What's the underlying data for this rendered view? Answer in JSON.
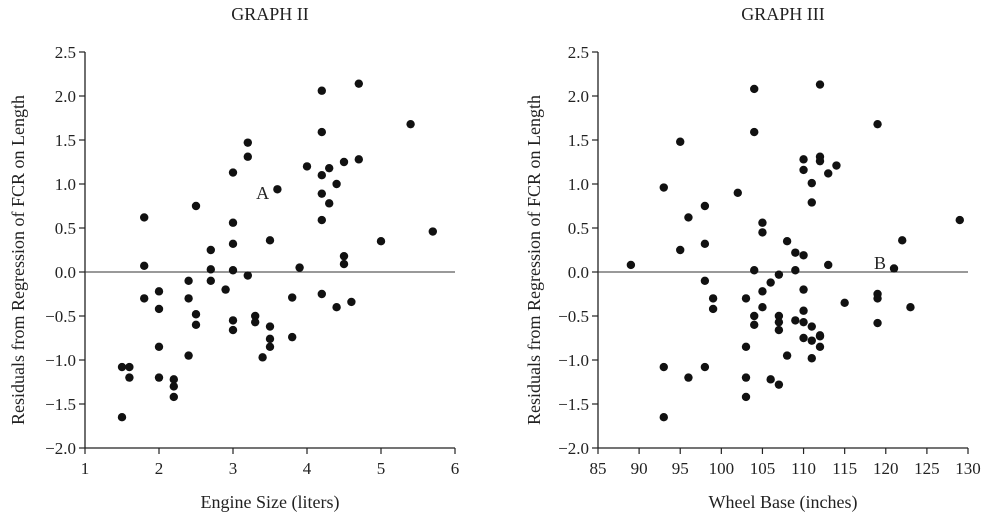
{
  "chart_data": [
    {
      "type": "scatter",
      "title": "GRAPH II",
      "xlabel": "Engine Size (liters)",
      "ylabel": "Residuals from Regression of FCR on Length",
      "xlim": [
        1,
        6
      ],
      "ylim": [
        -2.0,
        2.5
      ],
      "xticks": [
        "1",
        "2",
        "3",
        "4",
        "5",
        "6"
      ],
      "yticks": [
        "−2.0",
        "−1.5",
        "−1.0",
        "−0.5",
        "0.0",
        "0.5",
        "1.0",
        "1.5",
        "2.0",
        "2.5"
      ],
      "reference_line_y": 0,
      "annotations": [
        {
          "text": "A",
          "x": 3.4,
          "y": 0.9
        }
      ],
      "x": [
        1.5,
        1.5,
        1.6,
        1.6,
        1.8,
        1.8,
        1.8,
        2.0,
        2.0,
        2.0,
        2.0,
        2.2,
        2.2,
        2.2,
        2.4,
        2.4,
        2.4,
        2.5,
        2.5,
        2.5,
        2.7,
        2.7,
        2.7,
        2.9,
        3.0,
        3.0,
        3.0,
        3.0,
        3.0,
        3.0,
        3.2,
        3.2,
        3.2,
        3.3,
        3.3,
        3.4,
        3.5,
        3.5,
        3.5,
        3.5,
        3.6,
        3.8,
        3.8,
        3.9,
        4.0,
        4.2,
        4.2,
        4.2,
        4.2,
        4.2,
        4.2,
        4.3,
        4.3,
        4.4,
        4.4,
        4.5,
        4.5,
        4.5,
        4.6,
        4.7,
        4.7,
        5.0,
        5.4,
        5.7
      ],
      "y": [
        -1.08,
        -1.65,
        -1.08,
        -1.2,
        0.62,
        0.07,
        -0.3,
        -0.22,
        -0.42,
        -0.85,
        -1.2,
        -1.22,
        -1.3,
        -1.42,
        -0.1,
        -0.3,
        -0.95,
        0.75,
        -0.48,
        -0.6,
        0.25,
        0.03,
        -0.1,
        -0.2,
        1.13,
        0.56,
        0.32,
        0.02,
        -0.55,
        -0.66,
        1.47,
        1.31,
        -0.04,
        -0.5,
        -0.57,
        -0.97,
        0.36,
        -0.62,
        -0.76,
        -0.85,
        0.94,
        -0.29,
        -0.74,
        0.05,
        1.2,
        2.06,
        1.59,
        0.89,
        0.59,
        1.1,
        -0.25,
        0.78,
        1.18,
        1.0,
        -0.4,
        1.25,
        0.18,
        0.09,
        -0.34,
        2.14,
        1.28,
        0.35,
        1.68,
        0.46
      ]
    },
    {
      "type": "scatter",
      "title": "GRAPH III",
      "xlabel": "Wheel Base (inches)",
      "ylabel": "Residuals from Regression of FCR on Length",
      "xlim": [
        85,
        130
      ],
      "ylim": [
        -2.0,
        2.5
      ],
      "xticks": [
        "85",
        "90",
        "95",
        "100",
        "105",
        "110",
        "115",
        "120",
        "125",
        "130"
      ],
      "yticks": [
        "−2.0",
        "−1.5",
        "−1.0",
        "−0.5",
        "0.0",
        "0.5",
        "1.0",
        "1.5",
        "2.0",
        "2.5"
      ],
      "reference_line_y": 0,
      "annotations": [
        {
          "text": "B",
          "x": 119.3,
          "y": 0.1
        }
      ],
      "x": [
        89,
        93,
        93,
        93,
        95,
        95,
        96,
        96,
        98,
        98,
        98,
        98,
        99,
        99,
        102,
        103,
        103,
        103,
        103,
        104,
        104,
        104,
        104,
        104,
        105,
        105,
        105,
        105,
        106,
        106,
        107,
        107,
        107,
        107,
        107,
        108,
        108,
        109,
        109,
        109,
        110,
        110,
        110,
        110,
        110,
        110,
        110,
        111,
        111,
        111,
        111,
        111,
        112,
        112,
        112,
        112,
        112,
        112,
        113,
        113,
        114,
        115,
        119,
        119,
        119,
        119,
        121,
        122,
        123,
        129
      ],
      "y": [
        0.08,
        0.96,
        -1.08,
        -1.65,
        1.48,
        0.25,
        0.62,
        -1.2,
        0.75,
        0.32,
        -0.1,
        -1.08,
        -0.3,
        -0.42,
        0.9,
        -0.3,
        -0.85,
        -1.2,
        -1.42,
        2.08,
        1.59,
        0.02,
        -0.5,
        -0.6,
        0.56,
        0.45,
        -0.22,
        -0.4,
        -0.12,
        -1.22,
        -0.03,
        -0.5,
        -0.57,
        -0.66,
        -1.28,
        0.35,
        -0.95,
        0.02,
        0.22,
        -0.55,
        1.28,
        1.16,
        0.19,
        -0.2,
        -0.44,
        -0.57,
        -0.75,
        1.01,
        0.79,
        -0.62,
        -0.78,
        -0.98,
        2.13,
        1.31,
        1.26,
        -0.72,
        -0.85,
        -0.73,
        1.12,
        0.08,
        1.21,
        -0.35,
        1.68,
        -0.25,
        -0.3,
        -0.58,
        0.04,
        0.36,
        -0.4,
        0.59
      ]
    }
  ]
}
